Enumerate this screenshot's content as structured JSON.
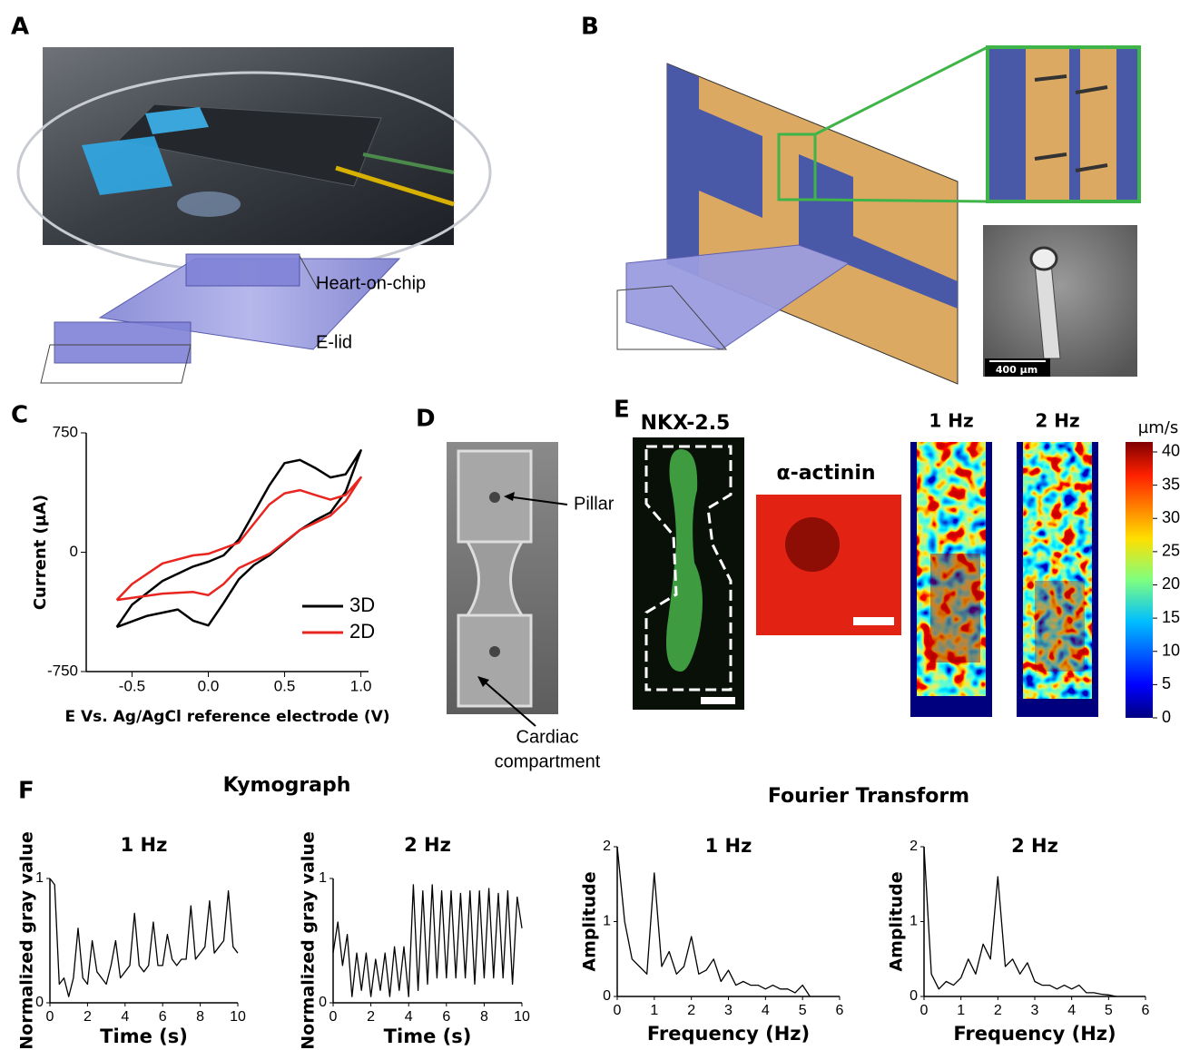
{
  "panel_labels": [
    "A",
    "B",
    "C",
    "D",
    "E",
    "F"
  ],
  "annotations": {
    "heart_on_chip": "Heart-on-chip",
    "e_lid": "E-lid",
    "scale_bar": "400 µm",
    "pillar": "Pillar",
    "cardiac": [
      "Cardiac",
      "compartment"
    ]
  },
  "stain_titles": [
    "NKX-2.5",
    "α-actinin"
  ],
  "heatmap_titles": [
    "1 Hz",
    "2 Hz"
  ],
  "colorbar": {
    "unit": "µm/s",
    "lim": [
      0,
      41.5
    ],
    "ticks": [
      0,
      5,
      10,
      15,
      20,
      25,
      30,
      35,
      40
    ]
  },
  "group_titles": [
    "Kymograph",
    "Fourier Transform"
  ],
  "chart_data": [
    {
      "type": "line",
      "x_label": "E Vs. Ag/AgCl reference electrode (V)",
      "y_label": "Current (µA)",
      "xlim": [
        -0.8,
        1.05
      ],
      "ylim": [
        -750,
        750
      ],
      "xticks": [
        -0.5,
        {
          "value": 0,
          "label": "0.0"
        },
        0.5,
        {
          "value": 1,
          "label": "1.0"
        }
      ],
      "yticks": [
        -750,
        0,
        750
      ],
      "legend": "lower right",
      "series": [
        {
          "name": "3D",
          "color": "#000000",
          "x": [
            -0.6,
            -0.5,
            -0.3,
            -0.1,
            0.0,
            0.1,
            0.2,
            0.3,
            0.4,
            0.5,
            0.6,
            0.7,
            0.8,
            0.9,
            1.0,
            0.9,
            0.8,
            0.7,
            0.6,
            0.5,
            0.4,
            0.3,
            0.2,
            0.1,
            0.0,
            -0.1,
            -0.2,
            -0.4,
            -0.6
          ],
          "values": [
            -470,
            -330,
            -180,
            -90,
            -60,
            -20,
            80,
            250,
            420,
            560,
            580,
            530,
            470,
            490,
            640,
            380,
            250,
            200,
            140,
            60,
            -20,
            -80,
            -170,
            -320,
            -460,
            -430,
            -360,
            -400,
            -470
          ]
        },
        {
          "name": "2D",
          "color": "#e8251f",
          "x": [
            -0.6,
            -0.5,
            -0.3,
            -0.1,
            0.0,
            0.2,
            0.3,
            0.4,
            0.5,
            0.6,
            0.7,
            0.8,
            0.9,
            1.0,
            0.9,
            0.8,
            0.6,
            0.4,
            0.2,
            0.1,
            0.0,
            -0.1,
            -0.3,
            -0.6
          ],
          "values": [
            -300,
            -200,
            -70,
            -20,
            -10,
            60,
            180,
            300,
            370,
            390,
            360,
            330,
            360,
            470,
            320,
            230,
            140,
            -10,
            -100,
            -200,
            -270,
            -250,
            -260,
            -300
          ]
        }
      ]
    },
    {
      "type": "line",
      "title": "1 Hz",
      "x_label": "Time (s)",
      "y_label": "Normalized gray value",
      "xlim": [
        0,
        10
      ],
      "ylim": [
        0,
        1
      ],
      "xticks": [
        0,
        2,
        4,
        6,
        8,
        10
      ],
      "yticks": [
        0,
        1
      ],
      "series": [
        {
          "color": "#000000",
          "x": [
            0,
            0.25,
            0.5,
            0.75,
            1,
            1.25,
            1.5,
            1.75,
            2,
            2.25,
            2.5,
            2.75,
            3,
            3.25,
            3.5,
            3.75,
            4,
            4.25,
            4.5,
            4.75,
            5,
            5.25,
            5.5,
            5.75,
            6,
            6.25,
            6.5,
            6.75,
            7,
            7.25,
            7.5,
            7.75,
            8,
            8.25,
            8.5,
            8.75,
            9,
            9.25,
            9.5,
            9.75,
            10
          ],
          "values": [
            1.0,
            0.95,
            0.15,
            0.2,
            0.05,
            0.2,
            0.6,
            0.2,
            0.15,
            0.5,
            0.25,
            0.2,
            0.15,
            0.3,
            0.5,
            0.2,
            0.25,
            0.3,
            0.72,
            0.3,
            0.25,
            0.3,
            0.65,
            0.3,
            0.3,
            0.55,
            0.35,
            0.3,
            0.35,
            0.35,
            0.78,
            0.35,
            0.4,
            0.45,
            0.82,
            0.4,
            0.45,
            0.5,
            0.9,
            0.45,
            0.4
          ]
        }
      ]
    },
    {
      "type": "line",
      "title": "2 Hz",
      "x_label": "Time (s)",
      "y_label": "Normalized gray value",
      "xlim": [
        0,
        10
      ],
      "ylim": [
        0,
        1
      ],
      "xticks": [
        0,
        2,
        4,
        6,
        8,
        10
      ],
      "yticks": [
        0,
        1
      ],
      "series": [
        {
          "color": "#000000",
          "x": [
            0,
            0.25,
            0.5,
            0.75,
            1,
            1.25,
            1.5,
            1.75,
            2,
            2.25,
            2.5,
            2.75,
            3,
            3.25,
            3.5,
            3.75,
            4,
            4.25,
            4.5,
            4.75,
            5,
            5.25,
            5.5,
            5.75,
            6,
            6.25,
            6.5,
            6.75,
            7,
            7.25,
            7.5,
            7.75,
            8,
            8.25,
            8.5,
            8.75,
            9,
            9.25,
            9.5,
            9.75,
            10
          ],
          "values": [
            0.4,
            0.65,
            0.3,
            0.55,
            0.05,
            0.4,
            0.1,
            0.4,
            0.05,
            0.35,
            0.1,
            0.4,
            0.05,
            0.45,
            0.1,
            0.45,
            0.05,
            0.95,
            0.1,
            0.9,
            0.15,
            0.95,
            0.2,
            0.9,
            0.2,
            0.9,
            0.2,
            0.88,
            0.2,
            0.9,
            0.15,
            0.9,
            0.2,
            0.92,
            0.2,
            0.88,
            0.2,
            0.9,
            0.15,
            0.85,
            0.6
          ]
        }
      ]
    },
    {
      "type": "line",
      "title": "1 Hz",
      "x_label": "Frequency (Hz)",
      "y_label": "Amplitude",
      "xlim": [
        0,
        6
      ],
      "ylim": [
        0,
        2
      ],
      "xticks": [
        0,
        1,
        2,
        3,
        4,
        5,
        6
      ],
      "yticks": [
        0,
        1,
        2
      ],
      "series": [
        {
          "color": "#000000",
          "x": [
            0,
            0.2,
            0.4,
            0.6,
            0.8,
            1.0,
            1.2,
            1.4,
            1.6,
            1.8,
            2.0,
            2.2,
            2.4,
            2.6,
            2.8,
            3.0,
            3.2,
            3.4,
            3.6,
            3.8,
            4.0,
            4.2,
            4.4,
            4.6,
            4.8,
            5.0,
            5.2
          ],
          "values": [
            2.0,
            1.0,
            0.5,
            0.4,
            0.3,
            1.65,
            0.4,
            0.6,
            0.3,
            0.4,
            0.8,
            0.3,
            0.35,
            0.5,
            0.2,
            0.35,
            0.15,
            0.2,
            0.15,
            0.15,
            0.1,
            0.15,
            0.1,
            0.1,
            0.05,
            0.15,
            0.0
          ]
        }
      ]
    },
    {
      "type": "line",
      "title": "2 Hz",
      "x_label": "Frequency (Hz)",
      "y_label": "Amplitude",
      "xlim": [
        0,
        6
      ],
      "ylim": [
        0,
        2
      ],
      "xticks": [
        0,
        1,
        2,
        3,
        4,
        5,
        6
      ],
      "yticks": [
        0,
        1,
        2
      ],
      "series": [
        {
          "color": "#000000",
          "x": [
            0,
            0.2,
            0.4,
            0.6,
            0.8,
            1.0,
            1.2,
            1.4,
            1.6,
            1.8,
            2.0,
            2.2,
            2.4,
            2.6,
            2.8,
            3.0,
            3.2,
            3.4,
            3.6,
            3.8,
            4.0,
            4.2,
            4.4,
            4.6,
            4.8,
            5.0,
            5.2
          ],
          "values": [
            2.0,
            0.3,
            0.1,
            0.2,
            0.15,
            0.25,
            0.5,
            0.3,
            0.7,
            0.5,
            1.6,
            0.4,
            0.5,
            0.3,
            0.45,
            0.2,
            0.15,
            0.15,
            0.1,
            0.15,
            0.1,
            0.15,
            0.05,
            0.05,
            0.03,
            0.02,
            0.0
          ]
        }
      ]
    }
  ]
}
